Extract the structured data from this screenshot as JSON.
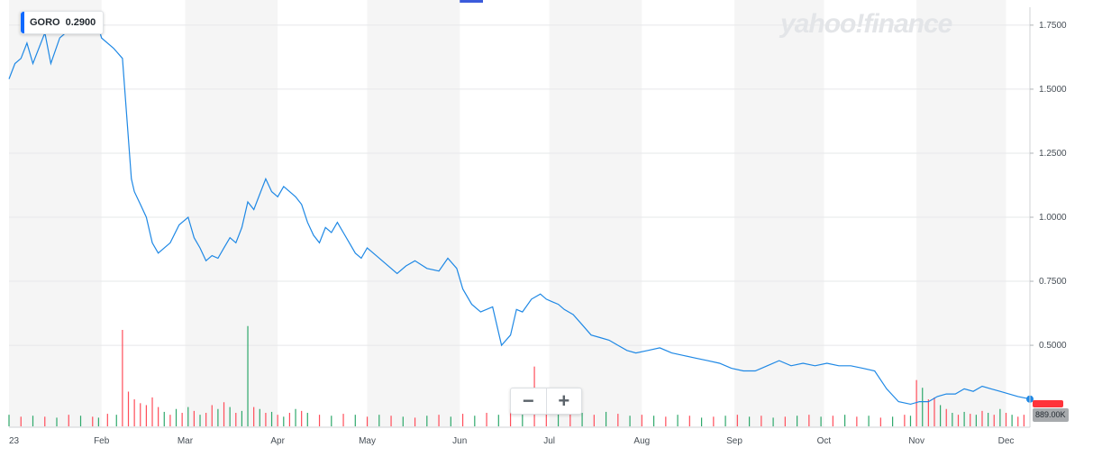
{
  "ticker": {
    "symbol": "GORO",
    "price": "0.2900"
  },
  "watermark": "yahoo!finance",
  "volume_tag": "889.00K",
  "zoom": {
    "minus": "−",
    "plus": "+"
  },
  "colors": {
    "price_line": "#1e88e5",
    "vol_up": "#2ea86b",
    "vol_down": "#ff4d5a",
    "band": "#f5f5f5",
    "accent": "#0f69ff"
  },
  "chart_data": {
    "type": "line",
    "title": "",
    "xlabel": "",
    "ylabel": "",
    "ylim": [
      0.18,
      1.82
    ],
    "y_ticks": [
      "1.7500",
      "1.5000",
      "1.2500",
      "1.0000",
      "0.7500",
      "0.5000"
    ],
    "y_tick_values": [
      1.75,
      1.5,
      1.25,
      1.0,
      0.75,
      0.5
    ],
    "x_tick_labels": [
      "23",
      "Feb",
      "Mar",
      "Apr",
      "May",
      "Jun",
      "Jul",
      "Aug",
      "Sep",
      "Oct",
      "Nov",
      "Dec"
    ],
    "x_start_day": 0,
    "x_end_day": 342,
    "x_tick_days": [
      0,
      31,
      59,
      90,
      120,
      151,
      181,
      212,
      243,
      273,
      304,
      334
    ],
    "grid": true,
    "series": [
      {
        "days": [
          0,
          2,
          4,
          6,
          8,
          12,
          14,
          17,
          19,
          22,
          25,
          28,
          30,
          31,
          35,
          38,
          41,
          42,
          44,
          46,
          48,
          50,
          52,
          54,
          57,
          60,
          62,
          64,
          66,
          68,
          70,
          72,
          74,
          76,
          78,
          80,
          82,
          84,
          86,
          88,
          90,
          92,
          94,
          96,
          98,
          100,
          102,
          104,
          106,
          108,
          110,
          112,
          114,
          116,
          118,
          120,
          123,
          126,
          130,
          133,
          136,
          140,
          144,
          147,
          150,
          152,
          155,
          158,
          162,
          165,
          168,
          170,
          172,
          175,
          178,
          180,
          182,
          184,
          186,
          189,
          192,
          195,
          198,
          201,
          204,
          207,
          210,
          214,
          218,
          222,
          226,
          230,
          234,
          238,
          242,
          246,
          250,
          254,
          258,
          262,
          266,
          270,
          274,
          278,
          282,
          286,
          290,
          294,
          298,
          302,
          305,
          308,
          311,
          314,
          317,
          320,
          323,
          326,
          329,
          332,
          335,
          338,
          342
        ],
        "values": [
          1.54,
          1.6,
          1.62,
          1.68,
          1.6,
          1.72,
          1.6,
          1.7,
          1.72,
          1.76,
          1.74,
          1.78,
          1.74,
          1.7,
          1.66,
          1.62,
          1.15,
          1.1,
          1.05,
          1.0,
          0.9,
          0.86,
          0.88,
          0.9,
          0.97,
          1.0,
          0.92,
          0.88,
          0.83,
          0.85,
          0.84,
          0.88,
          0.92,
          0.9,
          0.96,
          1.06,
          1.03,
          1.09,
          1.15,
          1.1,
          1.08,
          1.12,
          1.1,
          1.08,
          1.05,
          0.98,
          0.93,
          0.9,
          0.96,
          0.94,
          0.98,
          0.94,
          0.9,
          0.86,
          0.84,
          0.88,
          0.85,
          0.82,
          0.78,
          0.81,
          0.83,
          0.8,
          0.79,
          0.84,
          0.8,
          0.72,
          0.66,
          0.63,
          0.65,
          0.5,
          0.54,
          0.64,
          0.63,
          0.68,
          0.7,
          0.68,
          0.67,
          0.66,
          0.64,
          0.62,
          0.58,
          0.54,
          0.53,
          0.52,
          0.5,
          0.48,
          0.47,
          0.48,
          0.49,
          0.47,
          0.46,
          0.45,
          0.44,
          0.43,
          0.41,
          0.4,
          0.4,
          0.42,
          0.44,
          0.42,
          0.43,
          0.42,
          0.43,
          0.42,
          0.42,
          0.41,
          0.4,
          0.33,
          0.28,
          0.27,
          0.28,
          0.28,
          0.3,
          0.31,
          0.31,
          0.33,
          0.32,
          0.34,
          0.33,
          0.32,
          0.31,
          0.3,
          0.29
        ]
      }
    ],
    "volume": {
      "days": [
        0,
        4,
        8,
        12,
        16,
        20,
        24,
        28,
        30,
        33,
        36,
        38,
        40,
        42,
        44,
        46,
        48,
        50,
        52,
        54,
        56,
        58,
        60,
        62,
        64,
        66,
        68,
        70,
        72,
        74,
        76,
        78,
        80,
        82,
        84,
        86,
        88,
        90,
        92,
        94,
        96,
        98,
        100,
        104,
        108,
        112,
        116,
        120,
        124,
        128,
        132,
        136,
        140,
        144,
        148,
        152,
        156,
        160,
        164,
        168,
        172,
        176,
        180,
        184,
        188,
        192,
        196,
        200,
        204,
        208,
        212,
        216,
        220,
        224,
        228,
        232,
        236,
        240,
        244,
        248,
        252,
        256,
        260,
        264,
        268,
        272,
        276,
        280,
        284,
        288,
        292,
        296,
        300,
        302,
        304,
        306,
        308,
        310,
        312,
        314,
        316,
        318,
        320,
        322,
        324,
        326,
        328,
        330,
        332,
        334,
        336,
        338,
        340
      ],
      "values": [
        0.12,
        0.1,
        0.11,
        0.1,
        0.09,
        0.12,
        0.11,
        0.1,
        0.09,
        0.13,
        0.12,
        1.0,
        0.36,
        0.28,
        0.24,
        0.22,
        0.3,
        0.2,
        0.15,
        0.12,
        0.18,
        0.14,
        0.2,
        0.16,
        0.12,
        0.14,
        0.22,
        0.18,
        0.25,
        0.2,
        0.14,
        0.16,
        1.04,
        0.2,
        0.18,
        0.14,
        0.15,
        0.12,
        0.1,
        0.14,
        0.18,
        0.16,
        0.14,
        0.12,
        0.11,
        0.13,
        0.12,
        0.1,
        0.12,
        0.11,
        0.1,
        0.09,
        0.11,
        0.12,
        0.1,
        0.13,
        0.11,
        0.14,
        0.12,
        0.18,
        0.16,
        0.62,
        0.3,
        0.24,
        0.18,
        0.14,
        0.12,
        0.15,
        0.13,
        0.11,
        0.12,
        0.11,
        0.1,
        0.12,
        0.11,
        0.09,
        0.1,
        0.11,
        0.12,
        0.1,
        0.11,
        0.09,
        0.1,
        0.11,
        0.12,
        0.1,
        0.11,
        0.12,
        0.1,
        0.11,
        0.09,
        0.1,
        0.12,
        0.11,
        0.48,
        0.4,
        0.28,
        0.3,
        0.22,
        0.18,
        0.14,
        0.12,
        0.15,
        0.13,
        0.12,
        0.16,
        0.14,
        0.12,
        0.18,
        0.14,
        0.12,
        0.1,
        0.12
      ],
      "up": [
        true,
        false,
        true,
        false,
        true,
        false,
        true,
        false,
        true,
        false,
        true,
        false,
        false,
        false,
        false,
        false,
        false,
        false,
        true,
        false,
        true,
        false,
        true,
        false,
        true,
        false,
        false,
        true,
        false,
        true,
        false,
        true,
        true,
        false,
        true,
        false,
        true,
        false,
        true,
        false,
        true,
        false,
        true,
        false,
        true,
        false,
        true,
        false,
        true,
        false,
        true,
        false,
        true,
        false,
        true,
        false,
        true,
        false,
        true,
        false,
        true,
        false,
        false,
        true,
        false,
        true,
        false,
        true,
        false,
        true,
        false,
        true,
        false,
        true,
        false,
        true,
        false,
        true,
        false,
        true,
        false,
        true,
        false,
        true,
        false,
        true,
        false,
        true,
        false,
        true,
        false,
        true,
        false,
        true,
        false,
        true,
        false,
        false,
        true,
        false,
        true,
        false,
        true,
        false,
        true,
        false,
        true,
        false,
        true,
        false,
        true,
        false,
        false
      ]
    }
  }
}
